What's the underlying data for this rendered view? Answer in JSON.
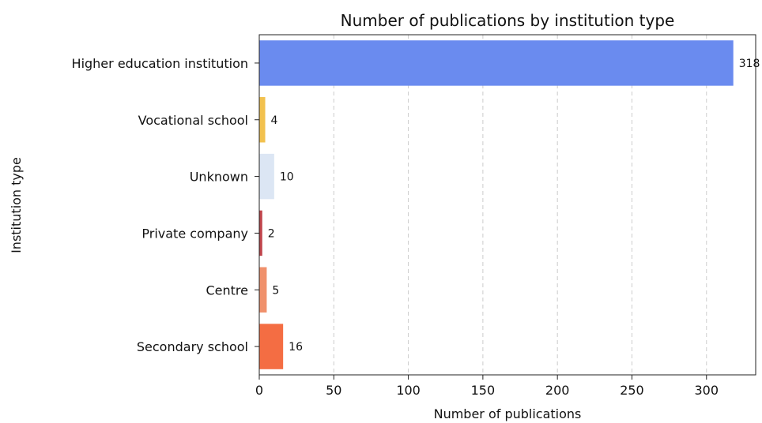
{
  "chart_data": {
    "type": "bar",
    "orientation": "horizontal",
    "title": "Number of publications by institution type",
    "xlabel": "Number of publications",
    "ylabel": "Institution type",
    "categories": [
      "Secondary school",
      "Centre",
      "Private company",
      "Unknown",
      "Vocational school",
      "Higher education institution"
    ],
    "values": [
      16,
      5,
      2,
      10,
      4,
      318
    ],
    "data_labels": [
      "16",
      "5",
      "2",
      "10",
      "4",
      "318"
    ],
    "colors": [
      "#f46d43",
      "#f0916c",
      "#c0444b",
      "#dce6f4",
      "#f2c14e",
      "#6a8bef"
    ],
    "x_ticks": [
      "0",
      "50",
      "100",
      "150",
      "200",
      "250",
      "300"
    ],
    "xlim": [
      0,
      333
    ],
    "grid": "x-dashed"
  }
}
